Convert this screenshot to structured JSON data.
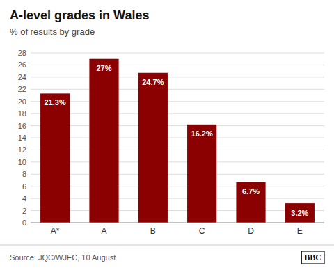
{
  "chart_data": {
    "type": "bar",
    "title": "A-level grades in Wales",
    "subtitle": "% of results by grade",
    "categories": [
      "A*",
      "A",
      "B",
      "C",
      "D",
      "E"
    ],
    "values": [
      21.3,
      27.0,
      24.7,
      16.2,
      6.7,
      3.2
    ],
    "value_labels": [
      "21.3%",
      "27%",
      "24.7%",
      "16.2%",
      "6.7%",
      "3.2%"
    ],
    "data_labels": true,
    "color": "#8B0000",
    "ylim": [
      0,
      28
    ],
    "yticks": [
      0,
      2,
      4,
      6,
      8,
      10,
      12,
      14,
      16,
      18,
      20,
      22,
      24,
      26,
      28
    ],
    "grid": true,
    "annotations": [
      "Source: JQC/WJEC, 10 August",
      "BBC"
    ]
  }
}
